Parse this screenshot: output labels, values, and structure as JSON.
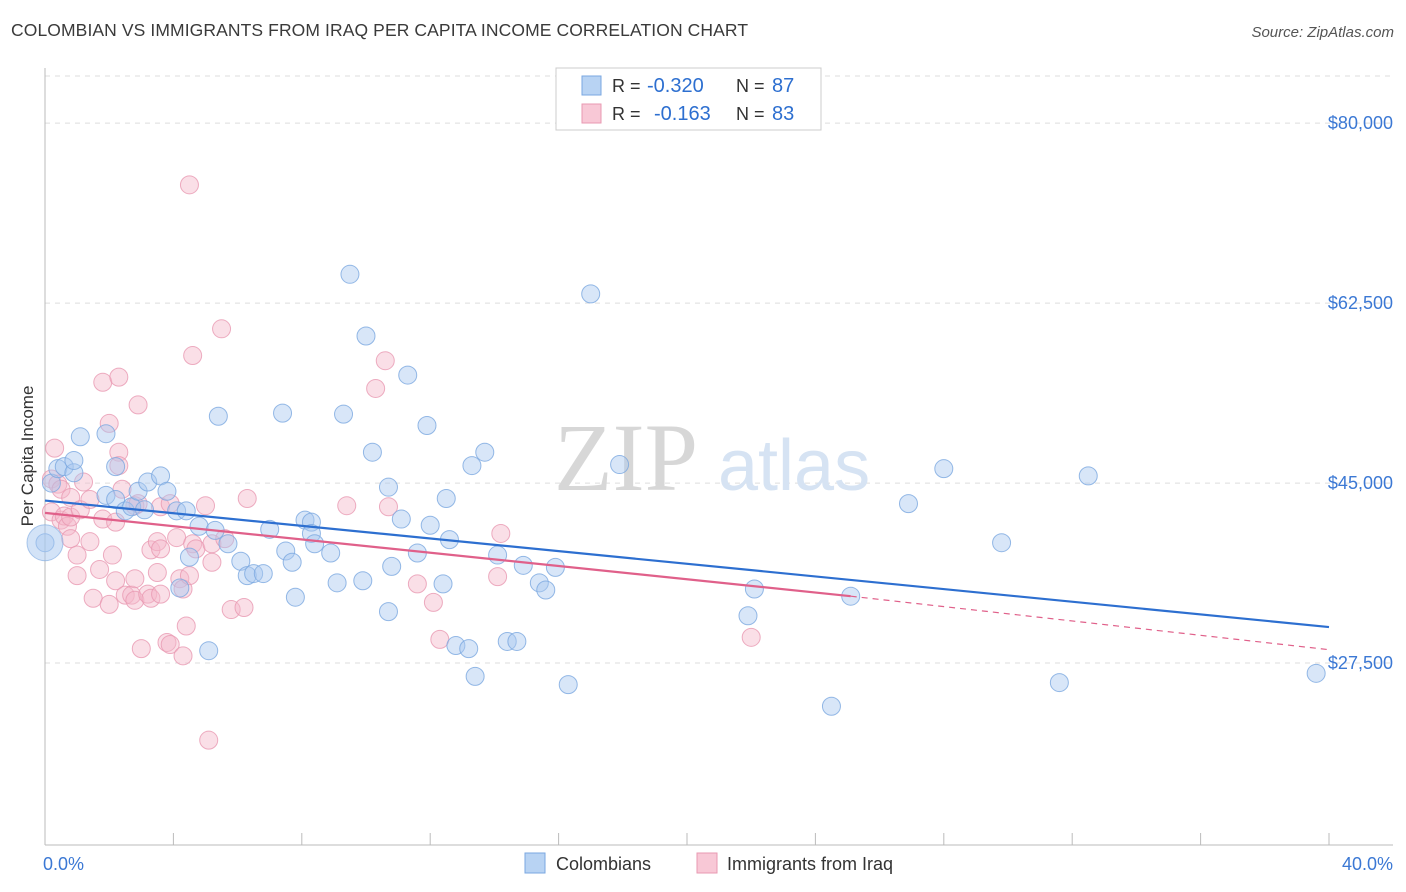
{
  "title": "COLOMBIAN VS IMMIGRANTS FROM IRAQ PER CAPITA INCOME CORRELATION CHART",
  "source": "Source: ZipAtlas.com",
  "watermark": {
    "zip": "ZIP",
    "atlas": "atlas"
  },
  "colors": {
    "blue_fill": "#a8c8f0",
    "blue_line": "#2d6fd0",
    "pink_fill": "#f5b8ca",
    "pink_line": "#e0608a",
    "axis_text": "#3b78d4",
    "grid": "#dddddd"
  },
  "stats": {
    "r_label": "R =",
    "n_label": "N =",
    "series": [
      {
        "r": "-0.320",
        "n": "87"
      },
      {
        "r": "-0.163",
        "n": "83"
      }
    ]
  },
  "chart_data": {
    "type": "scatter",
    "title": "COLOMBIAN VS IMMIGRANTS FROM IRAQ PER CAPITA INCOME CORRELATION CHART",
    "xlabel": "",
    "ylabel": "Per Capita Income",
    "xlim": [
      0,
      40
    ],
    "ylim": [
      10000,
      84000
    ],
    "x_tick_labels": [
      "0.0%",
      "40.0%"
    ],
    "y_ticks": [
      27500,
      45000,
      62500,
      80000
    ],
    "y_tick_labels": [
      "$27,500",
      "$45,000",
      "$62,500",
      "$80,000"
    ],
    "grid": true,
    "legend_position": "bottom-center",
    "series": [
      {
        "name": "Colombians",
        "color": "#a8c8f0",
        "trend": {
          "x": [
            0,
            40
          ],
          "y": [
            43300,
            31000
          ]
        },
        "points": [
          [
            0,
            39200
          ],
          [
            0.2,
            45000
          ],
          [
            0.4,
            46400
          ],
          [
            0.6,
            46600
          ],
          [
            0.9,
            46000
          ],
          [
            0.9,
            47200
          ],
          [
            1.1,
            49500
          ],
          [
            1.9,
            49800
          ],
          [
            1.9,
            43800
          ],
          [
            2.2,
            46600
          ],
          [
            2.2,
            43400
          ],
          [
            2.5,
            42300
          ],
          [
            2.7,
            42700
          ],
          [
            2.9,
            44200
          ],
          [
            3.1,
            42400
          ],
          [
            3.2,
            45100
          ],
          [
            3.6,
            45700
          ],
          [
            3.8,
            44200
          ],
          [
            4.1,
            42300
          ],
          [
            4.2,
            34800
          ],
          [
            4.4,
            42300
          ],
          [
            4.5,
            37800
          ],
          [
            4.8,
            40800
          ],
          [
            5.1,
            28700
          ],
          [
            5.3,
            40400
          ],
          [
            5.4,
            51500
          ],
          [
            5.7,
            39100
          ],
          [
            6.1,
            37400
          ],
          [
            6.3,
            36000
          ],
          [
            6.5,
            36200
          ],
          [
            6.8,
            36200
          ],
          [
            7.0,
            40500
          ],
          [
            7.4,
            51800
          ],
          [
            7.5,
            38400
          ],
          [
            7.7,
            37300
          ],
          [
            7.8,
            33900
          ],
          [
            8.1,
            41400
          ],
          [
            8.3,
            41200
          ],
          [
            8.3,
            40100
          ],
          [
            8.4,
            39100
          ],
          [
            8.9,
            38200
          ],
          [
            9.1,
            35300
          ],
          [
            9.3,
            51700
          ],
          [
            9.5,
            65300
          ],
          [
            9.9,
            35500
          ],
          [
            10.0,
            59300
          ],
          [
            10.2,
            48000
          ],
          [
            10.7,
            32500
          ],
          [
            10.7,
            44600
          ],
          [
            10.8,
            36900
          ],
          [
            11.1,
            41500
          ],
          [
            11.3,
            55500
          ],
          [
            11.6,
            38200
          ],
          [
            11.9,
            50600
          ],
          [
            12.0,
            40900
          ],
          [
            12.4,
            35200
          ],
          [
            12.5,
            43500
          ],
          [
            12.6,
            39500
          ],
          [
            12.8,
            29200
          ],
          [
            13.2,
            28900
          ],
          [
            13.3,
            46700
          ],
          [
            13.4,
            26200
          ],
          [
            13.7,
            48000
          ],
          [
            14.1,
            38000
          ],
          [
            14.4,
            29600
          ],
          [
            14.7,
            29600
          ],
          [
            14.9,
            37000
          ],
          [
            15.4,
            35300
          ],
          [
            15.6,
            34600
          ],
          [
            15.9,
            36800
          ],
          [
            16.3,
            25400
          ],
          [
            17.0,
            63400
          ],
          [
            17.9,
            46800
          ],
          [
            21.9,
            32100
          ],
          [
            22.1,
            34700
          ],
          [
            24.5,
            23300
          ],
          [
            25.1,
            34000
          ],
          [
            26.9,
            43000
          ],
          [
            28.0,
            46400
          ],
          [
            29.8,
            39200
          ],
          [
            31.6,
            25600
          ],
          [
            32.5,
            45700
          ],
          [
            39.6,
            26500
          ]
        ]
      },
      {
        "name": "Immigrants from Iraq",
        "color": "#f5b8ca",
        "trend": {
          "x": [
            0,
            25.1
          ],
          "y": [
            42100,
            34000
          ]
        },
        "trend_ext": {
          "x": [
            25.1,
            40
          ],
          "y": [
            34000,
            28800
          ]
        },
        "points": [
          [
            0.2,
            45400
          ],
          [
            0.2,
            42200
          ],
          [
            0.3,
            48400
          ],
          [
            0.4,
            44900
          ],
          [
            0.5,
            44400
          ],
          [
            0.5,
            41400
          ],
          [
            0.6,
            41800
          ],
          [
            0.7,
            40800
          ],
          [
            0.8,
            39600
          ],
          [
            0.8,
            41700
          ],
          [
            0.8,
            43600
          ],
          [
            1.0,
            38000
          ],
          [
            1.0,
            36000
          ],
          [
            1.1,
            42400
          ],
          [
            1.2,
            45100
          ],
          [
            1.4,
            43400
          ],
          [
            1.4,
            39300
          ],
          [
            1.5,
            33800
          ],
          [
            1.7,
            36600
          ],
          [
            1.8,
            41500
          ],
          [
            1.8,
            54800
          ],
          [
            2.0,
            50800
          ],
          [
            2.0,
            33200
          ],
          [
            2.1,
            38000
          ],
          [
            2.2,
            41200
          ],
          [
            2.2,
            35500
          ],
          [
            2.3,
            55300
          ],
          [
            2.3,
            48000
          ],
          [
            2.3,
            46700
          ],
          [
            2.4,
            44400
          ],
          [
            2.5,
            34100
          ],
          [
            2.7,
            34100
          ],
          [
            2.8,
            33600
          ],
          [
            2.8,
            42800
          ],
          [
            2.8,
            35700
          ],
          [
            2.9,
            43000
          ],
          [
            2.9,
            52600
          ],
          [
            3.0,
            28900
          ],
          [
            3.2,
            34200
          ],
          [
            3.3,
            38500
          ],
          [
            3.3,
            33800
          ],
          [
            3.5,
            39300
          ],
          [
            3.5,
            36300
          ],
          [
            3.6,
            38600
          ],
          [
            3.6,
            34200
          ],
          [
            3.6,
            42700
          ],
          [
            3.8,
            29500
          ],
          [
            3.9,
            29300
          ],
          [
            3.9,
            43000
          ],
          [
            4.1,
            39700
          ],
          [
            4.2,
            35700
          ],
          [
            4.3,
            28200
          ],
          [
            4.3,
            34700
          ],
          [
            4.4,
            31100
          ],
          [
            4.5,
            36000
          ],
          [
            4.5,
            74000
          ],
          [
            4.6,
            57400
          ],
          [
            4.6,
            39100
          ],
          [
            4.7,
            38600
          ],
          [
            5.0,
            42800
          ],
          [
            5.1,
            20000
          ],
          [
            5.2,
            39100
          ],
          [
            5.2,
            37300
          ],
          [
            5.5,
            60000
          ],
          [
            5.6,
            39600
          ],
          [
            5.8,
            32700
          ],
          [
            6.2,
            32900
          ],
          [
            6.3,
            43500
          ],
          [
            9.4,
            42800
          ],
          [
            10.3,
            54200
          ],
          [
            10.6,
            56900
          ],
          [
            10.7,
            42700
          ],
          [
            11.6,
            35200
          ],
          [
            12.1,
            33400
          ],
          [
            12.3,
            29800
          ],
          [
            14.1,
            35900
          ],
          [
            14.2,
            40100
          ],
          [
            22.0,
            30000
          ]
        ]
      }
    ]
  }
}
